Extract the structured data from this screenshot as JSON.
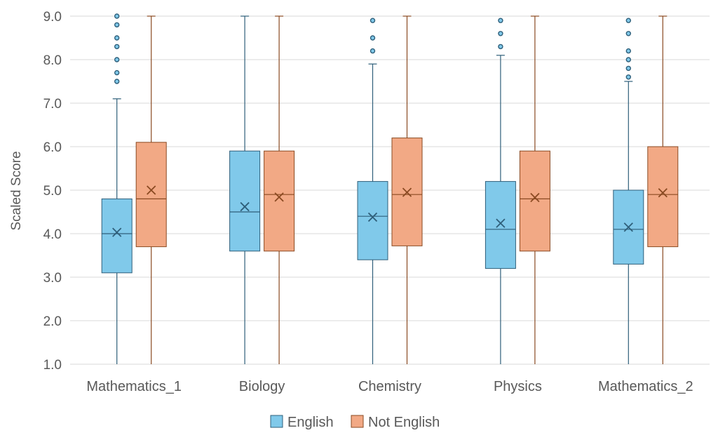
{
  "chart_data": {
    "type": "box",
    "ylabel": "Scaled Score",
    "ylim": [
      1.0,
      9.0
    ],
    "yticks": [
      "1.0",
      "2.0",
      "3.0",
      "4.0",
      "5.0",
      "6.0",
      "7.0",
      "8.0",
      "9.0"
    ],
    "grid": true,
    "legend_position": "bottom",
    "categories": [
      "Mathematics_1",
      "Biology",
      "Chemistry",
      "Physics",
      "Mathematics_2"
    ],
    "series": [
      {
        "name": "English",
        "fill": "#80c9ea",
        "stroke": "#2f5f7a",
        "boxes": [
          {
            "min": 1.0,
            "q1": 3.1,
            "median": 4.0,
            "q3": 4.8,
            "max": 7.1,
            "mean": 4.03,
            "outliers": [
              7.5,
              7.7,
              8.0,
              8.3,
              8.5,
              8.8,
              9.0
            ]
          },
          {
            "min": 1.0,
            "q1": 3.6,
            "median": 4.5,
            "q3": 5.9,
            "max": 9.0,
            "mean": 4.62,
            "outliers": []
          },
          {
            "min": 1.0,
            "q1": 3.4,
            "median": 4.4,
            "q3": 5.2,
            "max": 7.9,
            "mean": 4.38,
            "outliers": [
              8.2,
              8.5,
              8.9
            ]
          },
          {
            "min": 1.0,
            "q1": 3.2,
            "median": 4.1,
            "q3": 5.2,
            "max": 8.1,
            "mean": 4.24,
            "outliers": [
              8.3,
              8.6,
              8.9
            ]
          },
          {
            "min": 1.0,
            "q1": 3.3,
            "median": 4.1,
            "q3": 5.0,
            "max": 7.5,
            "mean": 4.15,
            "outliers": [
              7.6,
              7.8,
              8.0,
              8.2,
              8.6,
              8.9
            ]
          }
        ]
      },
      {
        "name": "Not English",
        "fill": "#f2a985",
        "stroke": "#8a4a22",
        "boxes": [
          {
            "min": 1.0,
            "q1": 3.7,
            "median": 4.8,
            "q3": 6.1,
            "max": 9.0,
            "mean": 5.0,
            "outliers": []
          },
          {
            "min": 1.0,
            "q1": 3.6,
            "median": 4.9,
            "q3": 5.9,
            "max": 9.0,
            "mean": 4.84,
            "outliers": []
          },
          {
            "min": 1.0,
            "q1": 3.72,
            "median": 4.9,
            "q3": 6.2,
            "max": 9.0,
            "mean": 4.95,
            "outliers": []
          },
          {
            "min": 1.0,
            "q1": 3.6,
            "median": 4.8,
            "q3": 5.9,
            "max": 9.0,
            "mean": 4.83,
            "outliers": []
          },
          {
            "min": 1.0,
            "q1": 3.7,
            "median": 4.9,
            "q3": 6.0,
            "max": 9.0,
            "mean": 4.94,
            "outliers": []
          }
        ]
      }
    ]
  }
}
